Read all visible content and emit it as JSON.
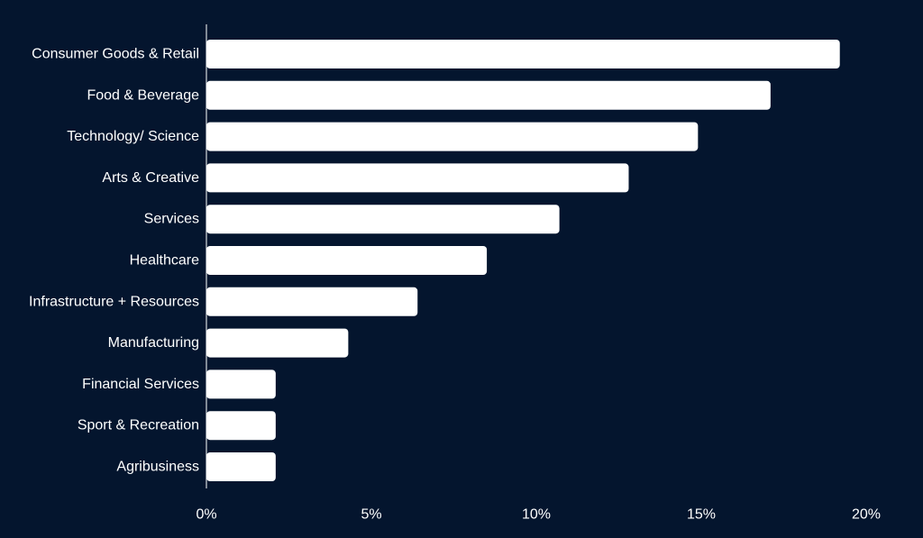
{
  "chart_data": {
    "type": "bar",
    "orientation": "horizontal",
    "title": "",
    "xlabel": "",
    "ylabel": "",
    "categories": [
      "Consumer Goods & Retail",
      "Food & Beverage",
      "Technology/ Science",
      "Arts & Creative",
      "Services",
      "Healthcare",
      "Infrastructure + Resources",
      "Manufacturing",
      "Financial Services",
      "Sport & Recreation",
      "Agribusiness"
    ],
    "values": [
      19.2,
      17.1,
      14.9,
      12.8,
      10.7,
      8.5,
      6.4,
      4.3,
      2.1,
      2.1,
      2.1
    ],
    "xlim": [
      0,
      20
    ],
    "x_ticks": [
      0,
      5,
      10,
      15,
      20
    ],
    "x_tick_labels": [
      "0%",
      "5%",
      "10%",
      "15%",
      "20%"
    ],
    "grid": false,
    "legend": "none",
    "bar_color": "#ffffff",
    "background_color": "#04152e",
    "text_color": "#ffffff"
  }
}
